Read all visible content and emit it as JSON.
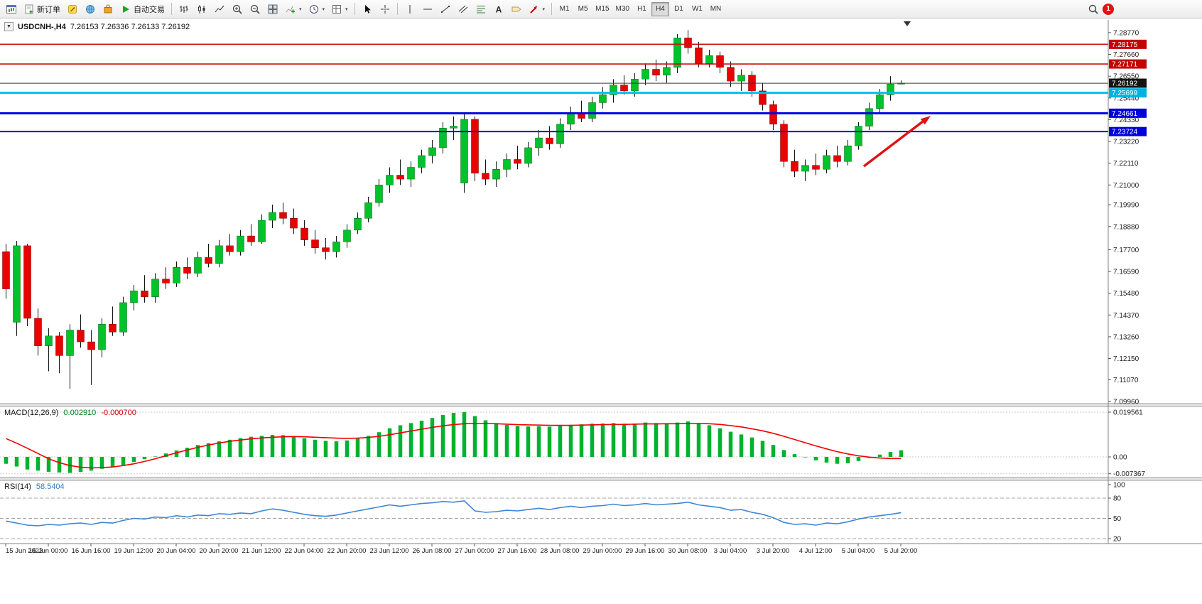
{
  "toolbar": {
    "new_order_label": "新订单",
    "autotrade_label": "自动交易",
    "timeframes": [
      "M1",
      "M5",
      "M15",
      "M30",
      "H1",
      "H4",
      "D1",
      "W1",
      "MN"
    ],
    "active_timeframe": "H4",
    "notification_count": "1",
    "icons": [
      "new-chart",
      "new-order",
      "metaeditor",
      "community",
      "marketplace",
      "autotrading-play",
      "bar-chart",
      "candlestick-chart",
      "line-chart",
      "zoom-in",
      "zoom-out",
      "tile-windows",
      "indicators",
      "periods",
      "templates",
      "cursor",
      "crosshair",
      "vertical-line",
      "horizontal-line",
      "trendline",
      "equidistant-channel",
      "fibonacci",
      "text",
      "text-label",
      "arrow-objects",
      "search",
      "notification"
    ]
  },
  "chart": {
    "symbol_period": "USDCNH-,H4",
    "ohlc_text": "7.26153 7.26336 7.26133 7.26192",
    "bull_color": "#00c22a",
    "bear_color": "#e80200",
    "arrow_color": "#e01212",
    "hlines": [
      {
        "price": 7.28175,
        "color": "#cc1010",
        "width": 1.6
      },
      {
        "price": 7.27171,
        "color": "#cc1010",
        "width": 1.6
      },
      {
        "price": 7.26192,
        "color": "#3a3a3a",
        "width": 1
      },
      {
        "price": 7.25699,
        "color": "#00c0ee",
        "width": 3
      },
      {
        "price": 7.24661,
        "color": "#0404e0",
        "width": 3
      },
      {
        "price": 7.23724,
        "color": "#0404e0",
        "width": 2
      }
    ],
    "price_axis": {
      "ticks": [
        "7.28770",
        "7.27660",
        "7.26550",
        "7.25440",
        "7.24330",
        "7.23220",
        "7.22110",
        "7.21000",
        "7.19990",
        "7.18880",
        "7.17700",
        "7.16590",
        "7.15480",
        "7.14370",
        "7.13260",
        "7.12150",
        "7.11070",
        "7.09960"
      ],
      "badges": [
        {
          "label": "7.28175",
          "color": "#c40000"
        },
        {
          "label": "7.27171",
          "color": "#c40000"
        },
        {
          "label": "7.26192",
          "color": "#141414"
        },
        {
          "label": "7.25699",
          "color": "#00b2e2"
        },
        {
          "label": "7.24661",
          "color": "#0000d8"
        },
        {
          "label": "7.23724",
          "color": "#0000d8"
        }
      ]
    },
    "candles": [
      [
        7.176,
        7.18,
        7.152,
        7.157
      ],
      [
        7.14,
        7.1815,
        7.133,
        7.179
      ],
      [
        7.179,
        7.18,
        7.138,
        7.142
      ],
      [
        7.142,
        7.147,
        7.123,
        7.128
      ],
      [
        7.128,
        7.137,
        7.115,
        7.133
      ],
      [
        7.133,
        7.135,
        7.114,
        7.123
      ],
      [
        7.123,
        7.139,
        7.106,
        7.136
      ],
      [
        7.136,
        7.144,
        7.127,
        7.13
      ],
      [
        7.13,
        7.136,
        7.108,
        7.126
      ],
      [
        7.126,
        7.142,
        7.122,
        7.139
      ],
      [
        7.139,
        7.148,
        7.133,
        7.135
      ],
      [
        7.135,
        7.153,
        7.133,
        7.15
      ],
      [
        7.15,
        7.159,
        7.146,
        7.156
      ],
      [
        7.156,
        7.164,
        7.15,
        7.153
      ],
      [
        7.153,
        7.165,
        7.15,
        7.162
      ],
      [
        7.162,
        7.168,
        7.157,
        7.16
      ],
      [
        7.16,
        7.171,
        7.158,
        7.168
      ],
      [
        7.168,
        7.173,
        7.162,
        7.165
      ],
      [
        7.165,
        7.176,
        7.163,
        7.173
      ],
      [
        7.173,
        7.18,
        7.168,
        7.17
      ],
      [
        7.17,
        7.182,
        7.168,
        7.179
      ],
      [
        7.179,
        7.185,
        7.174,
        7.176
      ],
      [
        7.176,
        7.187,
        7.174,
        7.184
      ],
      [
        7.184,
        7.19,
        7.179,
        7.181
      ],
      [
        7.181,
        7.195,
        7.18,
        7.192
      ],
      [
        7.192,
        7.2,
        7.188,
        7.196
      ],
      [
        7.196,
        7.201,
        7.19,
        7.193
      ],
      [
        7.193,
        7.198,
        7.185,
        7.188
      ],
      [
        7.188,
        7.192,
        7.179,
        7.182
      ],
      [
        7.182,
        7.187,
        7.175,
        7.178
      ],
      [
        7.178,
        7.183,
        7.172,
        7.176
      ],
      [
        7.176,
        7.184,
        7.173,
        7.181
      ],
      [
        7.181,
        7.19,
        7.178,
        7.187
      ],
      [
        7.187,
        7.196,
        7.185,
        7.193
      ],
      [
        7.193,
        7.204,
        7.191,
        7.201
      ],
      [
        7.201,
        7.213,
        7.199,
        7.21
      ],
      [
        7.21,
        7.219,
        7.206,
        7.215
      ],
      [
        7.215,
        7.223,
        7.21,
        7.213
      ],
      [
        7.213,
        7.222,
        7.209,
        7.219
      ],
      [
        7.219,
        7.228,
        7.216,
        7.225
      ],
      [
        7.225,
        7.233,
        7.221,
        7.229
      ],
      [
        7.229,
        7.242,
        7.226,
        7.239
      ],
      [
        7.239,
        7.245,
        7.233,
        7.24
      ],
      [
        7.211,
        7.247,
        7.206,
        7.2435
      ],
      [
        7.2435,
        7.245,
        7.212,
        7.216
      ],
      [
        7.216,
        7.223,
        7.21,
        7.213
      ],
      [
        7.213,
        7.222,
        7.209,
        7.218
      ],
      [
        7.218,
        7.226,
        7.214,
        7.223
      ],
      [
        7.223,
        7.23,
        7.218,
        7.221
      ],
      [
        7.221,
        7.232,
        7.219,
        7.229
      ],
      [
        7.229,
        7.238,
        7.225,
        7.234
      ],
      [
        7.234,
        7.24,
        7.228,
        7.231
      ],
      [
        7.231,
        7.244,
        7.229,
        7.241
      ],
      [
        7.241,
        7.25,
        7.238,
        7.247
      ],
      [
        7.247,
        7.253,
        7.242,
        7.244
      ],
      [
        7.244,
        7.255,
        7.242,
        7.252
      ],
      [
        7.252,
        7.26,
        7.249,
        7.256
      ],
      [
        7.256,
        7.264,
        7.252,
        7.261
      ],
      [
        7.261,
        7.266,
        7.256,
        7.258
      ],
      [
        7.258,
        7.267,
        7.255,
        7.264
      ],
      [
        7.264,
        7.272,
        7.261,
        7.269
      ],
      [
        7.269,
        7.274,
        7.263,
        7.266
      ],
      [
        7.266,
        7.273,
        7.262,
        7.27
      ],
      [
        7.27,
        7.287,
        7.267,
        7.285
      ],
      [
        7.285,
        7.289,
        7.277,
        7.28
      ],
      [
        7.28,
        7.283,
        7.27,
        7.272
      ],
      [
        7.272,
        7.279,
        7.27,
        7.276
      ],
      [
        7.276,
        7.278,
        7.267,
        7.27
      ],
      [
        7.27,
        7.273,
        7.26,
        7.263
      ],
      [
        7.263,
        7.269,
        7.258,
        7.266
      ],
      [
        7.266,
        7.268,
        7.255,
        7.258
      ],
      [
        7.258,
        7.262,
        7.248,
        7.251
      ],
      [
        7.251,
        7.253,
        7.238,
        7.241
      ],
      [
        7.241,
        7.243,
        7.219,
        7.222
      ],
      [
        7.222,
        7.228,
        7.214,
        7.217
      ],
      [
        7.217,
        7.223,
        7.212,
        7.22
      ],
      [
        7.22,
        7.226,
        7.215,
        7.218
      ],
      [
        7.218,
        7.228,
        7.216,
        7.225
      ],
      [
        7.225,
        7.23,
        7.219,
        7.222
      ],
      [
        7.222,
        7.233,
        7.22,
        7.23
      ],
      [
        7.23,
        7.242,
        7.228,
        7.24
      ],
      [
        7.24,
        7.252,
        7.238,
        7.249
      ],
      [
        7.249,
        7.259,
        7.246,
        7.256
      ],
      [
        7.256,
        7.2655,
        7.253,
        7.2615
      ],
      [
        7.26153,
        7.26336,
        7.26133,
        7.26192
      ]
    ]
  },
  "macd": {
    "label": "MACD(12,26,9)",
    "main_value": "0.002910",
    "signal_value": "-0.000700",
    "axis_labels": [
      "0.019561",
      "0.00",
      "-0.007367"
    ],
    "axis_values": [
      0.019561,
      0,
      -0.007367
    ],
    "histogram_color": "#00b22d",
    "signal_color": "#f40000",
    "histogram": [
      -0.003,
      -0.0042,
      -0.0055,
      -0.006,
      -0.0065,
      -0.0068,
      -0.007,
      -0.0066,
      -0.006,
      -0.0052,
      -0.0045,
      -0.0035,
      -0.0022,
      -0.001,
      0.0002,
      0.0015,
      0.0028,
      0.004,
      0.0052,
      0.006,
      0.0068,
      0.0075,
      0.0082,
      0.0088,
      0.0092,
      0.0096,
      0.0095,
      0.009,
      0.0082,
      0.0075,
      0.007,
      0.0068,
      0.0072,
      0.008,
      0.0092,
      0.0108,
      0.0125,
      0.0138,
      0.0148,
      0.0158,
      0.017,
      0.0183,
      0.0192,
      0.0196,
      0.0178,
      0.016,
      0.0148,
      0.014,
      0.0135,
      0.0133,
      0.0134,
      0.0132,
      0.0135,
      0.014,
      0.0142,
      0.0145,
      0.0146,
      0.0148,
      0.0145,
      0.0146,
      0.015,
      0.0148,
      0.0147,
      0.015,
      0.0155,
      0.0148,
      0.0138,
      0.0125,
      0.011,
      0.0098,
      0.0085,
      0.007,
      0.0052,
      0.003,
      0.0012,
      -0.0002,
      -0.0015,
      -0.0025,
      -0.003,
      -0.0028,
      -0.0018,
      -0.0005,
      0.001,
      0.0022,
      0.0029
    ],
    "signal": [
      0.008,
      0.006,
      0.0038,
      0.0015,
      -0.0008,
      -0.0025,
      -0.0038,
      -0.0045,
      -0.0048,
      -0.0047,
      -0.0044,
      -0.0038,
      -0.003,
      -0.002,
      -0.0008,
      0.0005,
      0.0018,
      0.003,
      0.0042,
      0.0052,
      0.0061,
      0.0068,
      0.0074,
      0.0079,
      0.0083,
      0.0086,
      0.0088,
      0.0089,
      0.0088,
      0.0086,
      0.0084,
      0.0082,
      0.0081,
      0.0082,
      0.0085,
      0.009,
      0.0097,
      0.0105,
      0.0113,
      0.0121,
      0.0129,
      0.0136,
      0.0141,
      0.0145,
      0.0146,
      0.0146,
      0.0145,
      0.0143,
      0.0141,
      0.014,
      0.0139,
      0.0138,
      0.0138,
      0.0138,
      0.0139,
      0.014,
      0.0141,
      0.0142,
      0.0142,
      0.0143,
      0.0144,
      0.0144,
      0.0145,
      0.0145,
      0.0146,
      0.0146,
      0.0145,
      0.0142,
      0.0137,
      0.0131,
      0.0123,
      0.0114,
      0.0103,
      0.009,
      0.0076,
      0.0062,
      0.0048,
      0.0035,
      0.0023,
      0.0013,
      0.0005,
      -0.0001,
      -0.0005,
      -0.0007,
      -0.0007
    ]
  },
  "rsi": {
    "label": "RSI(14)",
    "value": "58.5404",
    "line_color": "#3d86d8",
    "levels": [
      80,
      50,
      20
    ],
    "axis_labels": [
      "100",
      "80",
      "50",
      "20"
    ],
    "axis_values": [
      100,
      80,
      50,
      20
    ],
    "values": [
      46,
      43,
      40,
      39,
      41,
      40,
      42,
      43,
      41,
      44,
      43,
      47,
      50,
      49,
      52,
      51,
      54,
      52,
      55,
      54,
      57,
      56,
      58,
      57,
      61,
      64,
      62,
      59,
      56,
      54,
      53,
      55,
      58,
      61,
      64,
      67,
      70,
      68,
      70,
      72,
      73,
      75,
      74,
      76,
      61,
      59,
      60,
      62,
      61,
      63,
      65,
      63,
      66,
      68,
      66,
      68,
      69,
      71,
      69,
      70,
      72,
      70,
      71,
      72,
      74,
      70,
      68,
      66,
      62,
      63,
      59,
      56,
      51,
      44,
      41,
      42,
      40,
      43,
      42,
      45,
      49,
      52,
      54,
      56,
      58.54
    ]
  },
  "time_axis": {
    "labels": [
      "15 Jun 2023",
      "16 Jun 00:00",
      "16 Jun 16:00",
      "19 Jun 12:00",
      "20 Jun 04:00",
      "20 Jun 20:00",
      "21 Jun 12:00",
      "22 Jun 04:00",
      "22 Jun 20:00",
      "23 Jun 12:00",
      "26 Jun 08:00",
      "27 Jun 00:00",
      "27 Jun 16:00",
      "28 Jun 08:00",
      "29 Jun 00:00",
      "29 Jun 16:00",
      "30 Jun 08:00",
      "3 Jul 04:00",
      "3 Jul 20:00",
      "4 Jul 12:00",
      "5 Jul 04:00",
      "5 Jul 20:00"
    ]
  }
}
